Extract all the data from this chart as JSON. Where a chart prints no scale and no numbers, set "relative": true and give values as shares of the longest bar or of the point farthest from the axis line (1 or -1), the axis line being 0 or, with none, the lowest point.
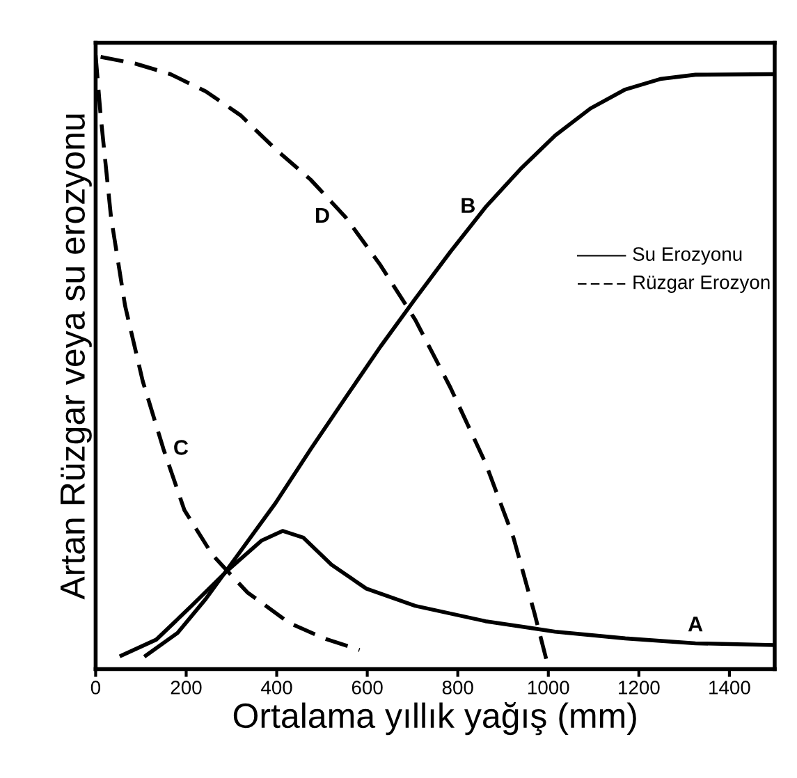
{
  "chart_data": {
    "type": "line",
    "relative": true,
    "xlabel": "Ortalama yıllık yağış (mm)",
    "ylabel": "Artan Rüzgar veya su erozyonu",
    "xlim": [
      0,
      1500
    ],
    "xticks": [
      0,
      200,
      400,
      600,
      800,
      1000,
      1200,
      1400
    ],
    "tick_labels": "x",
    "grid": false,
    "series": [
      {
        "name": "A",
        "color": "#000000",
        "line_style": "solid",
        "x": [
          57,
          134,
          212,
          289,
          366,
          413,
          459,
          521,
          598,
          706,
          861,
          1015,
          1170,
          1325,
          1499
        ],
        "values": [
          0.022,
          0.048,
          0.103,
          0.159,
          0.209,
          0.225,
          0.214,
          0.17,
          0.131,
          0.103,
          0.078,
          0.061,
          0.05,
          0.042,
          0.039
        ]
      },
      {
        "name": "B",
        "color": "#000000",
        "line_style": "solid",
        "x": [
          111,
          181,
          243,
          320,
          397,
          475,
          552,
          629,
          706,
          784,
          861,
          938,
          1015,
          1093,
          1170,
          1247,
          1325,
          1499
        ],
        "values": [
          0.022,
          0.059,
          0.114,
          0.192,
          0.27,
          0.358,
          0.442,
          0.525,
          0.603,
          0.68,
          0.752,
          0.814,
          0.869,
          0.913,
          0.944,
          0.961,
          0.968,
          0.969
        ]
      },
      {
        "name": "C",
        "color": "#000000",
        "line_style": "dashed",
        "x": [
          0,
          11,
          34,
          65,
          104,
          150,
          196,
          258,
          335,
          428,
          505,
          583
        ],
        "values": [
          1.0,
          0.902,
          0.736,
          0.592,
          0.469,
          0.358,
          0.259,
          0.186,
          0.125,
          0.075,
          0.05,
          0.031
        ]
      },
      {
        "name": "D",
        "color": "#000000",
        "line_style": "dashed",
        "x": [
          11,
          88,
          165,
          243,
          320,
          397,
          475,
          552,
          629,
          706,
          784,
          861,
          923,
          969,
          1000
        ],
        "values": [
          0.997,
          0.986,
          0.969,
          0.941,
          0.902,
          0.847,
          0.797,
          0.736,
          0.658,
          0.569,
          0.458,
          0.336,
          0.214,
          0.092,
          0.003
        ]
      }
    ],
    "annotations": [
      "Su Erozyonu",
      "Rüzgar Erozyon"
    ]
  }
}
